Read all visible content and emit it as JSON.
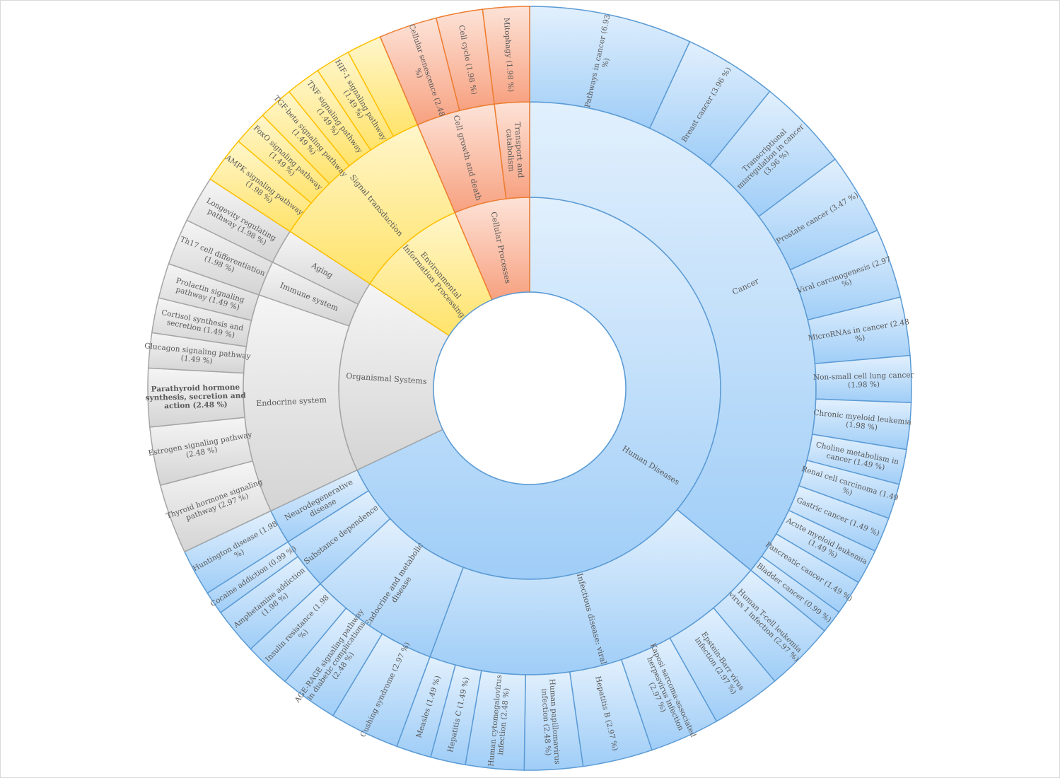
{
  "chart_data": {
    "type": "sunburst",
    "title": "",
    "rings": [
      "category",
      "subcategory",
      "pathway"
    ],
    "colors": {
      "Human Diseases": "#9dc9f4",
      "Organismal Systems": "#d9d9d9",
      "Environmental Information Processing": "#ffe77a",
      "Cellular Processes": "#f8ad8d",
      "Human Diseases_stroke": "#5b9bd5",
      "Organismal Systems_stroke": "#a5a5a5",
      "Environmental Information Processing_stroke": "#ffc000",
      "Cellular Processes_stroke": "#ed7d31"
    },
    "categories": [
      {
        "name": "Human Diseases",
        "subcategories": [
          {
            "name": "Cancer",
            "pathways": [
              {
                "label": "Pathways in cancer (6.93 %)",
                "value": 6.93
              },
              {
                "label": "Breast cancer (3.96 %)",
                "value": 3.96
              },
              {
                "label": "Transcriptional misregulation in cancer (3.96 %)",
                "value": 3.96
              },
              {
                "label": "Prostate cancer (3.47 %)",
                "value": 3.47
              },
              {
                "label": "Viral carcinogenesis (2.97 %)",
                "value": 2.97
              },
              {
                "label": "MicroRNAs in cancer (2.48 %)",
                "value": 2.48
              },
              {
                "label": "Non-small cell lung cancer (1.98 %)",
                "value": 1.98
              },
              {
                "label": "Chronic myeloid leukemia (1.98 %)",
                "value": 1.98
              },
              {
                "label": "Choline metabolism in cancer (1.49 %)",
                "value": 1.49
              },
              {
                "label": "Renal cell carcinoma (1.49 %)",
                "value": 1.49
              },
              {
                "label": "Gastric cancer (1.49 %)",
                "value": 1.49
              },
              {
                "label": "Acute myeloid leukemia (1.49 %)",
                "value": 1.49
              },
              {
                "label": "Pancreatic cancer (1.49 %)",
                "value": 1.49
              },
              {
                "label": "Bladder cancer (0.99 %)",
                "value": 0.99
              }
            ]
          },
          {
            "name": "Infectious disease: viral",
            "pathways": [
              {
                "label": "Human T-cell leukemia virus 1 infection (2.97 %)",
                "value": 2.97
              },
              {
                "label": "Epstein-Barr virus infection (2.97 %)",
                "value": 2.97
              },
              {
                "label": "Kaposi sarcoma-associated herpesvirus infection (2.97 %)",
                "value": 2.97
              },
              {
                "label": "Hepatitis B (2.97 %)",
                "value": 2.97
              },
              {
                "label": "Human papillomavirus infection (2.48 %)",
                "value": 2.48
              },
              {
                "label": "Human cytomegalovirus infection (2.48 %)",
                "value": 2.48
              },
              {
                "label": "Hepatitis C (1.49 %)",
                "value": 1.49
              },
              {
                "label": "Measles (1.49 %)",
                "value": 1.49
              }
            ]
          },
          {
            "name": "Endocrine and metabolic disease",
            "pathways": [
              {
                "label": "Cushing syndrome (2.97 %)",
                "value": 2.97
              },
              {
                "label": "AGE-RAGE signaling pathway in diabetic complications (2.48 %)",
                "value": 2.48
              },
              {
                "label": "Insulin resistance (1.98 %)",
                "value": 1.98
              }
            ]
          },
          {
            "name": "Substance dependence",
            "pathways": [
              {
                "label": "Amphetamine addiction (1.98 %)",
                "value": 1.98
              },
              {
                "label": "Cocaine addiction (0.99 %)",
                "value": 0.99
              }
            ]
          },
          {
            "name": "Neurodegenerative disease",
            "pathways": [
              {
                "label": "Huntington disease (1.98 %)",
                "value": 1.98
              }
            ]
          }
        ]
      },
      {
        "name": "Organismal Systems",
        "subcategories": [
          {
            "name": "Endocrine system",
            "pathways": [
              {
                "label": "Thyroid hormone signaling pathway (2.97 %)",
                "value": 2.97
              },
              {
                "label": "Estrogen signaling pathway (2.48 %)",
                "value": 2.48
              },
              {
                "label": "Parathyroid hormone synthesis, secretion and action (2.48 %)",
                "value": 2.48,
                "bold": true
              },
              {
                "label": "Glucagon signaling pathway (1.49 %)",
                "value": 1.49
              },
              {
                "label": "Cortisol synthesis and secretion (1.49 %)",
                "value": 1.49
              },
              {
                "label": "Prolactin signaling pathway (1.49 %)",
                "value": 1.49
              }
            ]
          },
          {
            "name": "Immune system",
            "pathways": [
              {
                "label": "Th17 cell differentiation (1.98 %)",
                "value": 1.98
              }
            ]
          },
          {
            "name": "Aging",
            "pathways": [
              {
                "label": "Longevity regulating pathway (1.98 %)",
                "value": 1.98
              }
            ]
          }
        ]
      },
      {
        "name": "Environmental Information Processing",
        "subcategories": [
          {
            "name": "Signal transduction",
            "pathways": [
              {
                "label": "AMPK signaling pathway (1.98 %)",
                "value": 1.98
              },
              {
                "label": "FoxO signaling pathway (1.49 %)",
                "value": 1.49
              },
              {
                "label": "TGF-beta signaling pathway (1.49 %)",
                "value": 1.49
              },
              {
                "label": "TNF signaling pathway (1.49 %)",
                "value": 1.49
              },
              {
                "label": "HIF-1 signaling pathway (1.49 %)",
                "value": 1.49
              },
              {
                "label": "",
                "value": 1.49
              }
            ]
          }
        ]
      },
      {
        "name": "Cellular Processes",
        "subcategories": [
          {
            "name": "Cell growth and death",
            "pathways": [
              {
                "label": "Cellular senescence (2.48 %)",
                "value": 2.48
              },
              {
                "label": "Cell cycle (1.98 %)",
                "value": 1.98
              }
            ]
          },
          {
            "name": "Transport and catabolism",
            "pathways": [
              {
                "label": "Mitophagy (1.98 %)",
                "value": 1.98
              }
            ]
          }
        ]
      }
    ]
  }
}
